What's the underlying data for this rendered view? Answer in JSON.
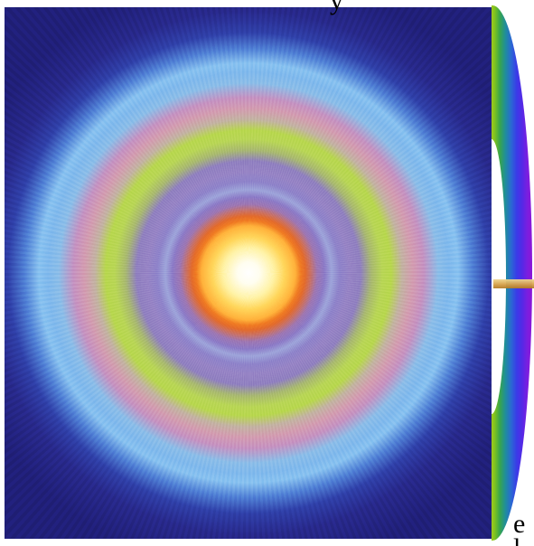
{
  "image": {
    "type": "radial-rainbow-halo",
    "colors": {
      "center": "#ffffff",
      "inner_yellow": "#ffd65a",
      "inner_orange": "#f07a22",
      "violet_ring": "#8b79c6",
      "green_ring": "#b8d655",
      "pink_ring": "#d39bb0",
      "light_blue_ring": "#88c2f0",
      "outer_navy": "#201f78"
    }
  },
  "side_graphic": {
    "type": "spectrum-crescent",
    "colors": {
      "left_edge": "#9fc81e",
      "middle": "#2a6ad2",
      "right_edge": "#8d16d6",
      "beam": "#d6a24a"
    }
  },
  "text_fragments": {
    "top": "y",
    "bottom_right": "e",
    "bottom_tail": "l"
  }
}
